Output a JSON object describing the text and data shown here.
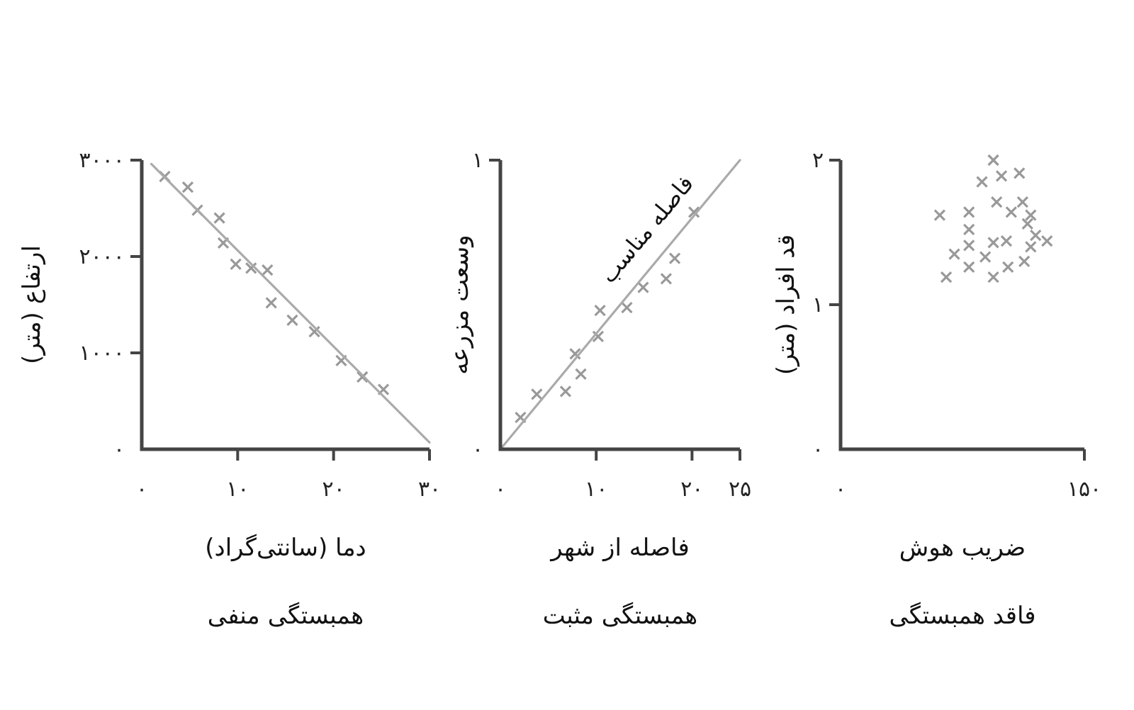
{
  "chart_data": [
    {
      "type": "scatter",
      "xlabel": "دما (سانتی‌گراد)",
      "ylabel": "ارتفاع (متر)",
      "title": "همبستگی منفی",
      "xlim": [
        0,
        30
      ],
      "ylim": [
        0,
        3000
      ],
      "xticks": [
        {
          "value": 0,
          "label": "۰"
        },
        {
          "value": 10,
          "label": "۱۰"
        },
        {
          "value": 20,
          "label": "۲۰"
        },
        {
          "value": 30,
          "label": "۳۰"
        }
      ],
      "yticks": [
        {
          "value": 0,
          "label": "۰"
        },
        {
          "value": 1000,
          "label": "۱۰۰۰"
        },
        {
          "value": 2000,
          "label": "۲۰۰۰"
        },
        {
          "value": 3000,
          "label": "۳۰۰۰"
        }
      ],
      "series": [
        {
          "marker": "cross",
          "color": "#999999",
          "x": [
            2.4,
            4.8,
            5.8,
            8.1,
            8.5,
            9.8,
            11.4,
            13.1,
            13.5,
            15.7,
            18.0,
            20.8,
            23.0,
            25.2
          ],
          "values": [
            2830,
            2720,
            2480,
            2400,
            2140,
            1920,
            1880,
            1860,
            1520,
            1340,
            1220,
            920,
            750,
            620
          ]
        },
        {
          "type": "line",
          "color": "#aaaaaa",
          "x": [
            1,
            30
          ],
          "values": [
            2960,
            70
          ]
        }
      ]
    },
    {
      "type": "scatter",
      "xlabel": "فاصله از شهر",
      "ylabel": "وسعت مزرعه",
      "title": "همبستگی مثبت",
      "xlim": [
        0,
        25
      ],
      "ylim": [
        0,
        1
      ],
      "xticks": [
        {
          "value": 0,
          "label": "۰"
        },
        {
          "value": 10,
          "label": "۱۰"
        },
        {
          "value": 20,
          "label": "۲۰"
        },
        {
          "value": 25,
          "label": "۲۵"
        }
      ],
      "yticks": [
        {
          "value": 0,
          "label": "۰"
        },
        {
          "value": 1,
          "label": "۱"
        }
      ],
      "annotations": [
        "فاصله مناسب"
      ],
      "series": [
        {
          "marker": "cross",
          "color": "#999999",
          "x": [
            2.1,
            3.8,
            6.8,
            7.8,
            8.4,
            10.2,
            10.4,
            13.2,
            14.9,
            17.3,
            18.2,
            20.2
          ],
          "values": [
            0.11,
            0.19,
            0.2,
            0.33,
            0.26,
            0.39,
            0.48,
            0.49,
            0.56,
            0.59,
            0.66,
            0.82
          ]
        },
        {
          "type": "line",
          "color": "#aaaaaa",
          "x": [
            0,
            25
          ],
          "values": [
            0,
            1
          ]
        }
      ]
    },
    {
      "type": "scatter",
      "xlabel": "ضریب هوش",
      "ylabel": "قد افراد (متر)",
      "title": "فاقد همبستگی",
      "xlim": [
        0,
        150
      ],
      "ylim": [
        0,
        2
      ],
      "xticks": [
        {
          "value": 0,
          "label": "۰"
        },
        {
          "value": 150,
          "label": "۱۵۰"
        }
      ],
      "yticks": [
        {
          "value": 0,
          "label": "۰"
        },
        {
          "value": 1,
          "label": "۱"
        },
        {
          "value": 2,
          "label": "۲"
        }
      ],
      "series": [
        {
          "marker": "cross",
          "color": "#999999",
          "x": [
            61,
            65,
            70,
            79,
            79,
            79,
            79,
            87,
            89,
            94,
            94,
            94,
            96,
            99,
            102,
            103,
            105,
            110,
            112,
            113,
            115,
            117,
            117,
            120,
            127
          ],
          "values": [
            1.62,
            1.19,
            1.35,
            1.64,
            1.52,
            1.41,
            1.26,
            1.85,
            1.33,
            2.0,
            1.43,
            1.19,
            1.71,
            1.89,
            1.44,
            1.26,
            1.64,
            1.91,
            1.71,
            1.3,
            1.56,
            1.62,
            1.4,
            1.48,
            1.44
          ]
        }
      ]
    }
  ]
}
